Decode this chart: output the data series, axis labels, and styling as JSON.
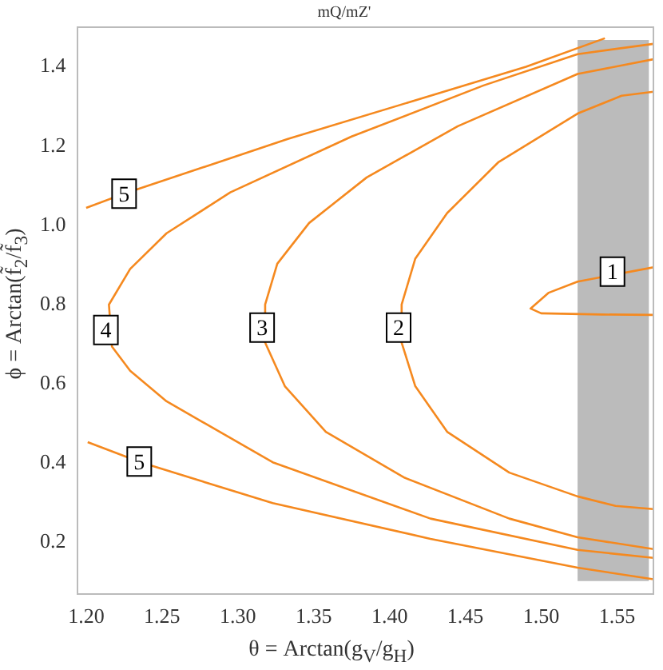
{
  "chart_data": {
    "type": "line",
    "title": "mQ/mZ'",
    "xlabel": "θ = Arctan(g$_{V}$/g$_{H}$)",
    "ylabel": "ϕ = Arctan(f̃$_{2}$/f̃$_{3}$)",
    "xlim": [
      1.194,
      1.574
    ],
    "ylim": [
      0.07,
      1.5
    ],
    "xticks": [
      {
        "value": 1.2,
        "label": "1.20"
      },
      {
        "value": 1.25,
        "label": "1.25"
      },
      {
        "value": 1.3,
        "label": "1.30"
      },
      {
        "value": 1.35,
        "label": "1.35"
      },
      {
        "value": 1.4,
        "label": "1.40"
      },
      {
        "value": 1.45,
        "label": "1.45"
      },
      {
        "value": 1.5,
        "label": "1.50"
      },
      {
        "value": 1.55,
        "label": "1.55"
      }
    ],
    "yticks": [
      0.2,
      0.4,
      0.6,
      0.8,
      {
        "value": 1,
        "label": "1.0"
      },
      1.2,
      1.4
    ],
    "grid": false,
    "legend": false,
    "bands": [
      {
        "axis": "x",
        "from": 1.524,
        "to": 1.571,
        "color": "#bbbbbb"
      }
    ],
    "series": [
      {
        "color": "#f5891f",
        "x": [
          1.2,
          1.225,
          1.28,
          1.333,
          1.427,
          1.49,
          1.542
        ],
        "values": [
          1.044,
          1.08,
          1.15,
          1.218,
          1.327,
          1.4,
          1.472
        ]
      },
      {
        "color": "#f5891f",
        "x": [
          1.201,
          1.236,
          1.323,
          1.427,
          1.524,
          1.574
        ],
        "values": [
          0.453,
          0.402,
          0.299,
          0.209,
          0.136,
          0.107
        ]
      },
      {
        "color": "#f5891f",
        "x": [
          1.574,
          1.524,
          1.462,
          1.375,
          1.295,
          1.253,
          1.229,
          1.215,
          1.217,
          1.229,
          1.253,
          1.323,
          1.427,
          1.524,
          1.574
        ],
        "values": [
          1.458,
          1.432,
          1.353,
          1.224,
          1.083,
          0.98,
          0.89,
          0.8,
          0.694,
          0.633,
          0.556,
          0.402,
          0.26,
          0.181,
          0.161
        ]
      },
      {
        "color": "#f5891f",
        "x": [
          1.574,
          1.524,
          1.445,
          1.385,
          1.347,
          1.326,
          1.318,
          1.318,
          1.331,
          1.358,
          1.41,
          1.479,
          1.524,
          1.574
        ],
        "values": [
          1.419,
          1.382,
          1.25,
          1.121,
          1.006,
          0.903,
          0.8,
          0.704,
          0.594,
          0.479,
          0.363,
          0.26,
          0.213,
          0.183
        ]
      },
      {
        "color": "#f5891f",
        "x": [
          1.574,
          1.553,
          1.524,
          1.472,
          1.438,
          1.417,
          1.408,
          1.408,
          1.417,
          1.438,
          1.479,
          1.524,
          1.549,
          1.574
        ],
        "values": [
          1.337,
          1.327,
          1.282,
          1.16,
          1.031,
          0.916,
          0.8,
          0.704,
          0.594,
          0.479,
          0.376,
          0.316,
          0.292,
          0.284
        ]
      },
      {
        "color": "#f5891f",
        "x": [
          1.574,
          1.524,
          1.505,
          1.493,
          1.5,
          1.54,
          1.574
        ],
        "values": [
          0.894,
          0.858,
          0.83,
          0.79,
          0.778,
          0.775,
          0.774
        ]
      }
    ],
    "annotations": [
      {
        "text": "5",
        "x": 1.225,
        "y": 1.08
      },
      {
        "text": "5",
        "x": 1.235,
        "y": 0.404
      },
      {
        "text": "4",
        "x": 1.213,
        "y": 0.736
      },
      {
        "text": "3",
        "x": 1.316,
        "y": 0.742
      },
      {
        "text": "2",
        "x": 1.406,
        "y": 0.742
      },
      {
        "text": "1",
        "x": 1.547,
        "y": 0.883
      }
    ]
  }
}
